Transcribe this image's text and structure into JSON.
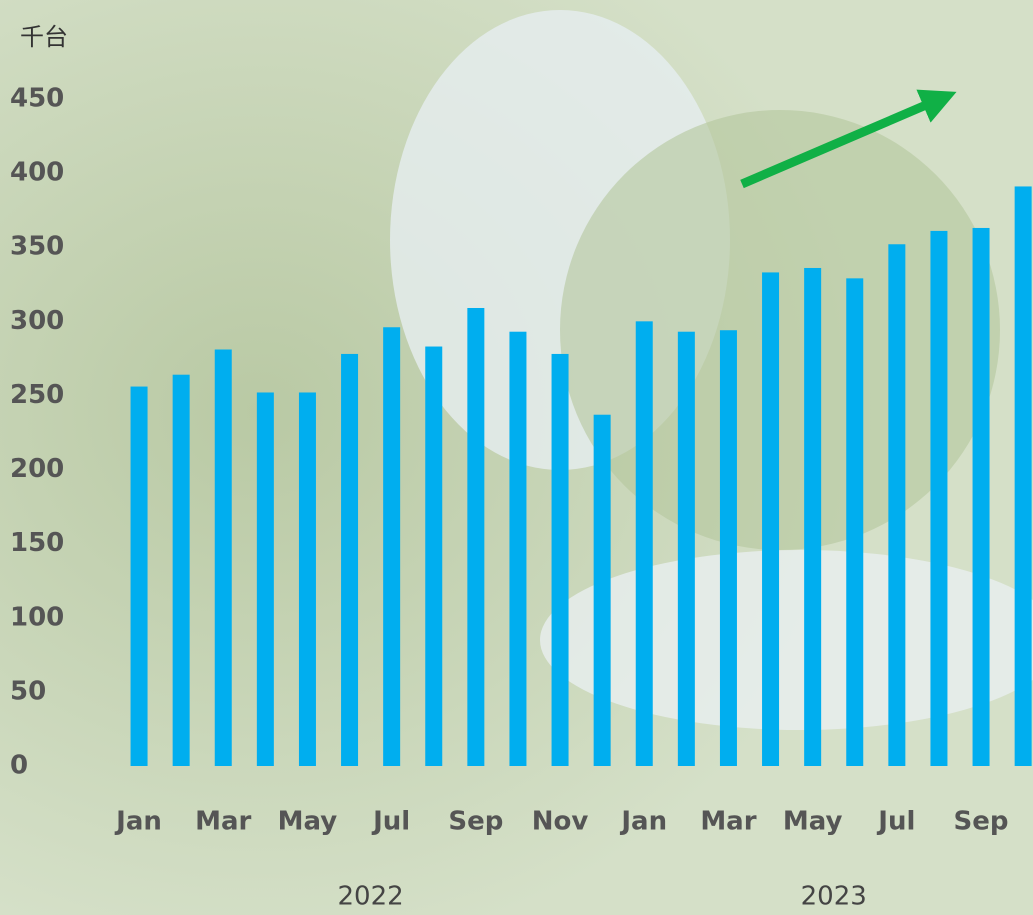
{
  "chart_data": {
    "type": "bar",
    "y_unit": "千台",
    "categories": [
      "Jan",
      null,
      "Mar",
      null,
      "May",
      null,
      "Jul",
      null,
      "Sep",
      null,
      "Nov",
      null,
      "Jan",
      null,
      "Mar",
      null,
      "May",
      null,
      "Jul",
      null,
      "Sep",
      null
    ],
    "values": [
      256,
      264,
      281,
      252,
      252,
      278,
      296,
      283,
      309,
      293,
      278,
      237,
      300,
      293,
      294,
      333,
      336,
      329,
      352,
      361,
      363,
      391
    ],
    "groups": [
      "2022",
      "2023"
    ],
    "color": "#00aeef",
    "ylim": [
      0,
      450
    ],
    "yticks": [
      0,
      50,
      100,
      150,
      200,
      250,
      300,
      350,
      400,
      450
    ],
    "grid": false
  }
}
